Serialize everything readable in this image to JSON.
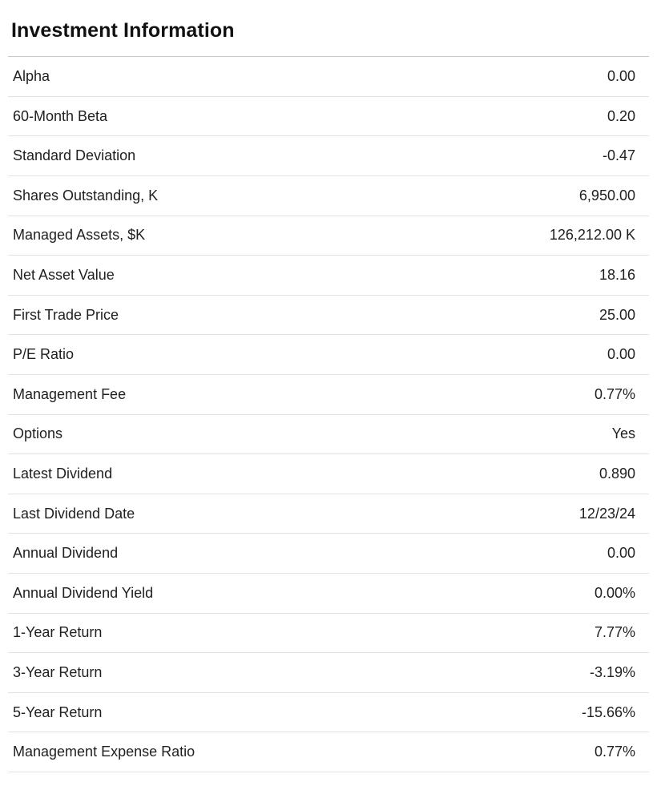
{
  "header": {
    "title": "Investment Information"
  },
  "table": {
    "rows": [
      {
        "label": "Alpha",
        "value": "0.00"
      },
      {
        "label": "60-Month Beta",
        "value": "0.20"
      },
      {
        "label": "Standard Deviation",
        "value": "-0.47"
      },
      {
        "label": "Shares Outstanding, K",
        "value": "6,950.00"
      },
      {
        "label": "Managed Assets, $K",
        "value": "126,212.00 K"
      },
      {
        "label": "Net Asset Value",
        "value": "18.16"
      },
      {
        "label": "First Trade Price",
        "value": "25.00"
      },
      {
        "label": "P/E Ratio",
        "value": "0.00"
      },
      {
        "label": "Management Fee",
        "value": "0.77%"
      },
      {
        "label": "Options",
        "value": "Yes"
      },
      {
        "label": "Latest Dividend",
        "value": "0.890"
      },
      {
        "label": "Last Dividend Date",
        "value": "12/23/24"
      },
      {
        "label": "Annual Dividend",
        "value": "0.00"
      },
      {
        "label": "Annual Dividend Yield",
        "value": "0.00%"
      },
      {
        "label": "1-Year Return",
        "value": "7.77%"
      },
      {
        "label": "3-Year Return",
        "value": "-3.19%"
      },
      {
        "label": "5-Year Return",
        "value": "-15.66%"
      },
      {
        "label": "Management Expense Ratio",
        "value": "0.77%"
      }
    ]
  },
  "colors": {
    "background": "#ffffff",
    "title_text": "#111111",
    "row_text": "#1f1f1f",
    "header_divider": "#c9c9c9",
    "row_divider": "#e2e2e2"
  }
}
